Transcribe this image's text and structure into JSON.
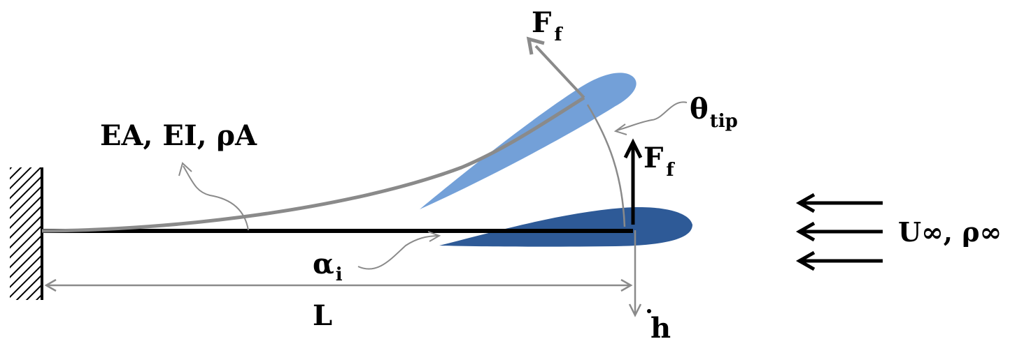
{
  "diagram": {
    "labels": {
      "properties": "EA, EI, ρA",
      "force_base": "F",
      "force_sub": "f",
      "theta_base": "θ",
      "theta_sub": "tip",
      "alpha_base": "α",
      "alpha_sub": "i",
      "length": "L",
      "plunge": "h",
      "flow": "U∞, ρ∞"
    },
    "colors": {
      "airfoil_rest": "#2e5a97",
      "airfoil_deflected": "#6b9bd6",
      "beam_rest": "#000000",
      "beam_deflected": "#8a8a8a",
      "annotation": "#8a8a8a"
    }
  }
}
